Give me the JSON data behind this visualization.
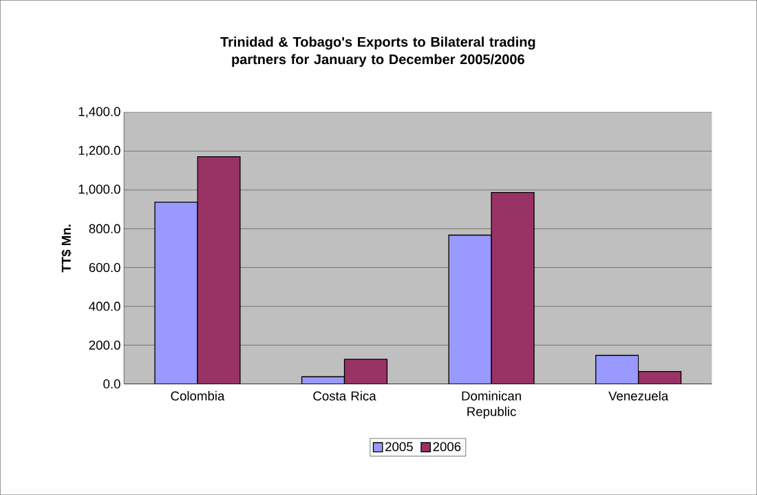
{
  "chart_data": {
    "type": "bar",
    "title": "Trinidad & Tobago's Exports to Bilateral trading partners for January to December 2005/2006",
    "ylabel": "TT$ Mn.",
    "categories": [
      "Colombia",
      "Costa Rica",
      "Dominican Republic",
      "Venezuela"
    ],
    "series": [
      {
        "name": "2005",
        "color": "#9999ff",
        "values": [
          937,
          37,
          767,
          147
        ]
      },
      {
        "name": "2006",
        "color": "#993366",
        "values": [
          1171,
          127,
          987,
          64
        ]
      }
    ],
    "ylim": [
      0,
      1400
    ],
    "yticks": [
      {
        "value": 0,
        "label": "0.0"
      },
      {
        "value": 200,
        "label": "200.0"
      },
      {
        "value": 400,
        "label": "400.0"
      },
      {
        "value": 600,
        "label": "600.0"
      },
      {
        "value": 800,
        "label": "800.0"
      },
      {
        "value": 1000,
        "label": "1,000.0"
      },
      {
        "value": 1200,
        "label": "1,200.0"
      },
      {
        "value": 1400,
        "label": "1,400.0"
      }
    ],
    "grid": "y",
    "legend": "bottom"
  }
}
